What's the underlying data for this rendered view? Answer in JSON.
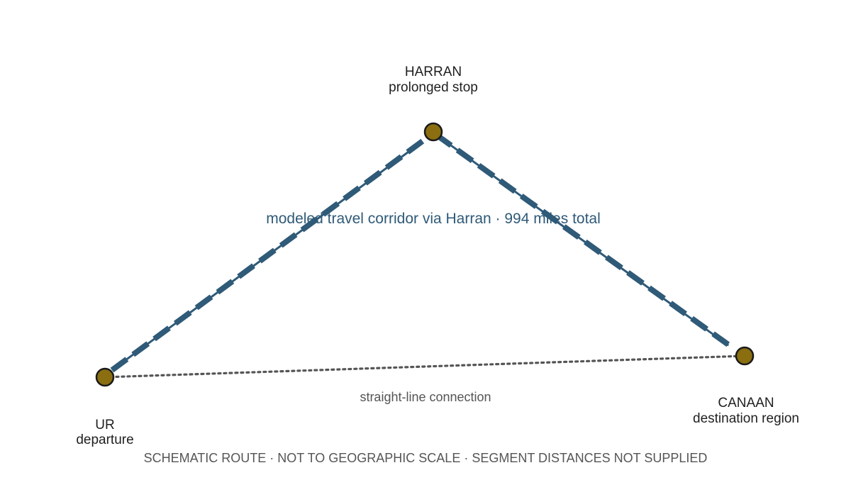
{
  "colors": {
    "route": "#2f5a78",
    "node_fill": "#8a6e10",
    "node_stroke": "#1a1a1a",
    "straight_line": "#555555",
    "label_text": "#1f1f1f",
    "muted_text": "#555555"
  },
  "places": {
    "ur": {
      "name": "UR",
      "role": "departure"
    },
    "harran": {
      "name": "HARRAN",
      "role": "prolonged stop"
    },
    "canaan": {
      "name": "CANAAN",
      "role": "destination region"
    }
  },
  "labels": {
    "corridor": "modeled travel corridor via Harran · 994 miles total",
    "straight": "straight-line connection",
    "footer": "SCHEMATIC ROUTE · NOT TO GEOGRAPHIC SCALE · SEGMENT DISTANCES NOT SUPPLIED"
  }
}
